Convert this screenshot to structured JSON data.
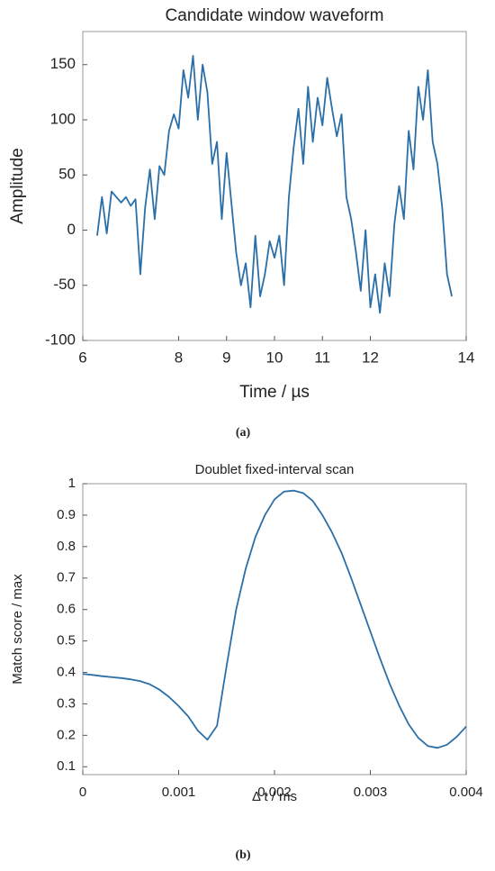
{
  "chart_data": [
    {
      "type": "line",
      "title": "Candidate window waveform",
      "xlabel": "Time / µs",
      "ylabel": "Amplitude",
      "caption": "(a)",
      "x": [
        6.3,
        6.4,
        6.5,
        6.6,
        6.7,
        6.8,
        6.9,
        7.0,
        7.1,
        7.2,
        7.3,
        7.4,
        7.5,
        7.6,
        7.7,
        7.8,
        7.9,
        8.0,
        8.1,
        8.2,
        8.3,
        8.4,
        8.5,
        8.6,
        8.7,
        8.8,
        8.9,
        9.0,
        9.1,
        9.2,
        9.3,
        9.4,
        9.5,
        9.6,
        9.7,
        9.8,
        9.9,
        10.0,
        10.1,
        10.2,
        10.3,
        10.4,
        10.5,
        10.6,
        10.7,
        10.8,
        10.9,
        11.0,
        11.1,
        11.2,
        11.3,
        11.4,
        11.5,
        11.6,
        11.7,
        11.8,
        11.9,
        12.0,
        12.1,
        12.2,
        12.3,
        12.4,
        12.5,
        12.6,
        12.7,
        12.8,
        12.9,
        13.0,
        13.1,
        13.2,
        13.3,
        13.4,
        13.5,
        13.6,
        13.7
      ],
      "series": [
        {
          "color": "#2a6fa8",
          "values": [
            -5,
            30,
            -3,
            35,
            30,
            25,
            30,
            22,
            28,
            -40,
            20,
            55,
            10,
            58,
            50,
            90,
            105,
            92,
            145,
            120,
            158,
            100,
            150,
            125,
            60,
            80,
            10,
            70,
            25,
            -20,
            -50,
            -30,
            -70,
            -5,
            -60,
            -40,
            -10,
            -25,
            -5,
            -50,
            30,
            75,
            110,
            60,
            130,
            80,
            120,
            95,
            138,
            110,
            85,
            105,
            30,
            10,
            -20,
            -55,
            0,
            -70,
            -40,
            -75,
            -30,
            -60,
            5,
            40,
            10,
            90,
            55,
            130,
            100,
            145,
            80,
            60,
            20,
            -40,
            -60
          ]
        }
      ],
      "xlim": [
        6,
        14
      ],
      "xticks": [
        6,
        8,
        9,
        10,
        11,
        12,
        14
      ],
      "ylim": [
        -100,
        180
      ],
      "yticks": [
        -100,
        -50,
        0,
        50,
        100,
        150
      ]
    },
    {
      "type": "line",
      "title": "Doublet fixed-interval scan",
      "xlabel": "Δ t / ms",
      "ylabel": "Match score / max",
      "caption": "(b)",
      "x": [
        0,
        0.0001,
        0.0002,
        0.0003,
        0.0004,
        0.0005,
        0.0006,
        0.0007,
        0.0008,
        0.0009,
        0.001,
        0.0011,
        0.0012,
        0.0013,
        0.0014,
        0.0015,
        0.0016,
        0.0017,
        0.0018,
        0.0019,
        0.002,
        0.0021,
        0.0022,
        0.0023,
        0.0024,
        0.0025,
        0.0026,
        0.0027,
        0.0028,
        0.0029,
        0.003,
        0.0031,
        0.0032,
        0.0033,
        0.0034,
        0.0035,
        0.0036,
        0.0037,
        0.0038,
        0.0039,
        0.004
      ],
      "series": [
        {
          "color": "#2a6fa8",
          "values": [
            0.395,
            0.392,
            0.388,
            0.385,
            0.382,
            0.378,
            0.372,
            0.362,
            0.345,
            0.322,
            0.293,
            0.26,
            0.215,
            0.186,
            0.23,
            0.42,
            0.6,
            0.73,
            0.83,
            0.9,
            0.95,
            0.975,
            0.978,
            0.97,
            0.945,
            0.9,
            0.845,
            0.78,
            0.7,
            0.615,
            0.53,
            0.445,
            0.365,
            0.295,
            0.235,
            0.192,
            0.166,
            0.16,
            0.17,
            0.195,
            0.228
          ]
        }
      ],
      "xlim": [
        0,
        0.004
      ],
      "xticks": [
        0,
        0.001,
        0.002,
        0.003,
        0.004
      ],
      "ylim": [
        0.075,
        1
      ],
      "yticks": [
        0.1,
        0.2,
        0.3,
        0.4,
        0.5,
        0.6,
        0.7,
        0.8,
        0.9,
        1
      ]
    }
  ]
}
